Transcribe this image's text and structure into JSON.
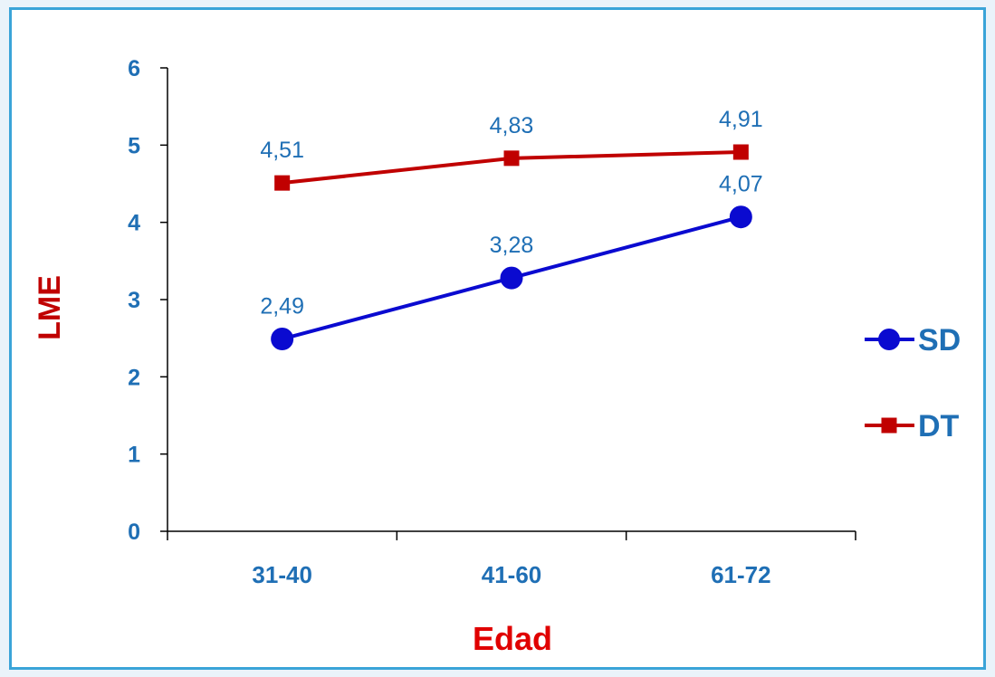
{
  "chart_data": {
    "type": "line",
    "title": "",
    "xlabel": "Edad",
    "ylabel": "LME",
    "categories": [
      "31-40",
      "41-60",
      "61-72"
    ],
    "ylim": [
      0,
      6
    ],
    "yticks": [
      "0",
      "1",
      "2",
      "3",
      "4",
      "5",
      "6"
    ],
    "grid": false,
    "legend_position": "right",
    "series": [
      {
        "name": "SD",
        "marker": "circle",
        "color": "#0a0ad0",
        "values": [
          2.49,
          3.28,
          4.07
        ],
        "labels": [
          "2,49",
          "3,28",
          "4,07"
        ]
      },
      {
        "name": "DT",
        "marker": "square",
        "color": "#c00000",
        "values": [
          4.51,
          4.83,
          4.91
        ],
        "labels": [
          "4,51",
          "4,83",
          "4,91"
        ]
      }
    ]
  }
}
